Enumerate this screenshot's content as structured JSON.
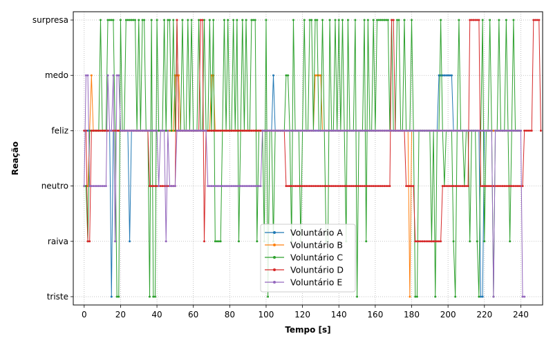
{
  "chart_data": {
    "type": "line",
    "title": "",
    "xlabel": "Tempo [s]",
    "ylabel": "Reação",
    "xlim": [
      -6,
      252
    ],
    "ylim": [
      -0.15,
      5.15
    ],
    "xticks": [
      0,
      20,
      40,
      60,
      80,
      100,
      120,
      140,
      160,
      180,
      200,
      220,
      240
    ],
    "yticks": [
      "triste",
      "raiva",
      "neutro",
      "feliz",
      "medo",
      "surpresa"
    ],
    "grid": true,
    "legend_position": "bottom-center",
    "sample_interval_s": 1,
    "series": [
      {
        "name": "Voluntário A",
        "color": "#1f77b4",
        "values": [
          3,
          3,
          3,
          3,
          3,
          3,
          3,
          3,
          3,
          3,
          3,
          3,
          3,
          3,
          3,
          0,
          3,
          3,
          3,
          3,
          3,
          3,
          3,
          3,
          3,
          1,
          3,
          3,
          3,
          3,
          3,
          3,
          3,
          3,
          3,
          3,
          3,
          3,
          3,
          3,
          3,
          3,
          3,
          3,
          3,
          3,
          3,
          3,
          3,
          3,
          3,
          3,
          3,
          3,
          3,
          3,
          3,
          3,
          3,
          3,
          3,
          3,
          3,
          3,
          3,
          3,
          3,
          3,
          3,
          3,
          3,
          3,
          3,
          3,
          3,
          3,
          3,
          3,
          3,
          3,
          3,
          3,
          3,
          3,
          3,
          3,
          3,
          3,
          3,
          3,
          3,
          3,
          3,
          3,
          3,
          3,
          3,
          3,
          3,
          3,
          3,
          3,
          3,
          3,
          4,
          3,
          3,
          3,
          3,
          3,
          3,
          3,
          3,
          3,
          3,
          3,
          3,
          3,
          3,
          3,
          3,
          3,
          3,
          3,
          3,
          3,
          3,
          3,
          3,
          3,
          3,
          3,
          3,
          3,
          3,
          3,
          3,
          3,
          3,
          3,
          3,
          3,
          3,
          3,
          3,
          3,
          3,
          3,
          3,
          3,
          3,
          3,
          3,
          3,
          3,
          3,
          3,
          3,
          3,
          3,
          3,
          3,
          3,
          3,
          3,
          3,
          3,
          3,
          3,
          3,
          3,
          3,
          3,
          3,
          3,
          3,
          3,
          3,
          3,
          3,
          3,
          3,
          3,
          3,
          3,
          3,
          3,
          3,
          3,
          3,
          3,
          3,
          3,
          3,
          3,
          4,
          4,
          4,
          4,
          4,
          4,
          4,
          4,
          3,
          3,
          3,
          3,
          3,
          3,
          3,
          3,
          3,
          3,
          3,
          3,
          3,
          3,
          3,
          0,
          0,
          3,
          3,
          3,
          3,
          3,
          3,
          3,
          3,
          3,
          3,
          3,
          3,
          3,
          3,
          3,
          3,
          3,
          3,
          3,
          3,
          3
        ]
      },
      {
        "name": "Voluntário B",
        "color": "#ff7f0e",
        "values": [
          2,
          2,
          2,
          3,
          4,
          3,
          3,
          3,
          3,
          3,
          3,
          3,
          3,
          3,
          3,
          3,
          3,
          3,
          3,
          3,
          3,
          3,
          3,
          3,
          3,
          3,
          3,
          3,
          3,
          3,
          3,
          3,
          3,
          3,
          3,
          3,
          3,
          3,
          3,
          3,
          3,
          3,
          3,
          3,
          3,
          3,
          3,
          3,
          3,
          3,
          4,
          4,
          4,
          3,
          3,
          3,
          3,
          3,
          3,
          3,
          3,
          3,
          3,
          3,
          3,
          3,
          3,
          3,
          3,
          3,
          4,
          4,
          3,
          3,
          3,
          3,
          3,
          3,
          3,
          3,
          3,
          3,
          3,
          3,
          3,
          3,
          3,
          3,
          3,
          3,
          3,
          3,
          3,
          3,
          3,
          3,
          3,
          3,
          3,
          3,
          3,
          3,
          3,
          3,
          3,
          3,
          3,
          3,
          3,
          3,
          3,
          3,
          3,
          3,
          3,
          3,
          3,
          3,
          3,
          3,
          3,
          3,
          3,
          3,
          3,
          3,
          3,
          4,
          4,
          4,
          4,
          3,
          3,
          3,
          3,
          3,
          3,
          3,
          3,
          3,
          3,
          3,
          3,
          3,
          3,
          3,
          3,
          3,
          3,
          3,
          3,
          3,
          3,
          3,
          3,
          3,
          3,
          3,
          3,
          3,
          3,
          3,
          3,
          3,
          3,
          3,
          3,
          3,
          3,
          3,
          3,
          3,
          3,
          3,
          3,
          3,
          3,
          3,
          3,
          0,
          3,
          3,
          3,
          3,
          3,
          3,
          3,
          3,
          3,
          3,
          3,
          3,
          3,
          3,
          3,
          3,
          3,
          3,
          3,
          3,
          3,
          3,
          3,
          3,
          3,
          3,
          3,
          3,
          3,
          3,
          3,
          3,
          3,
          3,
          3,
          3,
          3,
          3,
          3,
          3,
          3,
          3,
          3,
          3,
          3,
          3,
          3,
          3,
          3,
          3,
          3,
          3,
          3,
          3,
          3,
          3,
          3,
          3,
          3,
          3,
          3
        ]
      },
      {
        "name": "Voluntário C",
        "color": "#2ca02c",
        "values": [
          2,
          2,
          1,
          3,
          3,
          3,
          3,
          3,
          3,
          5,
          3,
          3,
          3,
          5,
          5,
          5,
          5,
          3,
          0,
          0,
          5,
          3,
          3,
          5,
          5,
          5,
          5,
          5,
          5,
          3,
          5,
          3,
          5,
          5,
          3,
          3,
          0,
          5,
          0,
          0,
          5,
          3,
          3,
          3,
          5,
          3,
          5,
          5,
          3,
          5,
          3,
          5,
          3,
          3,
          5,
          3,
          3,
          5,
          3,
          5,
          3,
          3,
          3,
          5,
          3,
          3,
          5,
          3,
          3,
          5,
          3,
          5,
          1,
          1,
          1,
          1,
          3,
          5,
          3,
          5,
          3,
          3,
          5,
          3,
          5,
          1,
          3,
          5,
          3,
          5,
          3,
          3,
          5,
          5,
          5,
          1,
          3,
          3,
          3,
          1,
          5,
          0,
          3,
          3,
          1,
          3,
          3,
          3,
          3,
          3,
          3,
          4,
          4,
          3,
          1,
          5,
          3,
          3,
          3,
          1,
          3,
          5,
          3,
          3,
          5,
          5,
          3,
          5,
          5,
          3,
          3,
          5,
          3,
          1,
          1,
          5,
          3,
          3,
          5,
          3,
          5,
          3,
          5,
          3,
          1,
          5,
          3,
          3,
          3,
          5,
          0,
          3,
          3,
          3,
          5,
          1,
          5,
          3,
          3,
          5,
          3,
          5,
          5,
          5,
          5,
          5,
          5,
          5,
          3,
          5,
          3,
          3,
          5,
          5,
          3,
          3,
          5,
          3,
          3,
          3,
          5,
          3,
          0,
          0,
          3,
          3,
          3,
          3,
          3,
          3,
          3,
          1,
          3,
          0,
          3,
          3,
          5,
          3,
          2,
          3,
          3,
          3,
          3,
          1,
          0,
          3,
          5,
          3,
          3,
          2,
          3,
          3,
          1,
          3,
          3,
          3,
          1,
          0,
          3,
          5,
          1,
          3,
          3,
          5,
          3,
          0,
          3,
          3,
          5,
          3,
          3,
          3,
          5,
          3,
          1,
          3,
          5,
          3,
          3,
          3,
          3
        ]
      },
      {
        "name": "Voluntário D",
        "color": "#d62728",
        "values": [
          3,
          3,
          1,
          1,
          3,
          3,
          3,
          3,
          3,
          3,
          3,
          3,
          3,
          3,
          3,
          3,
          3,
          3,
          3,
          3,
          3,
          3,
          3,
          3,
          3,
          3,
          3,
          3,
          3,
          3,
          3,
          3,
          3,
          3,
          3,
          3,
          2,
          2,
          2,
          2,
          2,
          2,
          2,
          2,
          2,
          2,
          2,
          2,
          2,
          2,
          2,
          5,
          3,
          3,
          3,
          3,
          3,
          3,
          3,
          3,
          3,
          3,
          3,
          3,
          5,
          5,
          1,
          3,
          3,
          3,
          3,
          3,
          3,
          3,
          3,
          3,
          3,
          3,
          3,
          3,
          3,
          3,
          3,
          3,
          3,
          3,
          3,
          3,
          3,
          3,
          3,
          3,
          3,
          3,
          3,
          3,
          3,
          3,
          3,
          3,
          3,
          3,
          3,
          3,
          3,
          3,
          3,
          3,
          3,
          3,
          3,
          2,
          2,
          2,
          2,
          2,
          2,
          2,
          2,
          2,
          2,
          2,
          2,
          2,
          2,
          2,
          2,
          2,
          2,
          2,
          2,
          2,
          2,
          2,
          2,
          2,
          2,
          2,
          2,
          2,
          2,
          2,
          2,
          2,
          2,
          2,
          2,
          2,
          2,
          2,
          2,
          2,
          2,
          2,
          2,
          2,
          2,
          2,
          2,
          2,
          2,
          2,
          2,
          2,
          2,
          2,
          2,
          2,
          2,
          5,
          5,
          3,
          3,
          3,
          3,
          3,
          3,
          2,
          2,
          2,
          2,
          2,
          1,
          1,
          1,
          1,
          1,
          1,
          1,
          1,
          1,
          1,
          1,
          1,
          1,
          1,
          1,
          2,
          2,
          2,
          2,
          2,
          2,
          2,
          2,
          2,
          2,
          2,
          2,
          2,
          2,
          2,
          5,
          5,
          5,
          5,
          5,
          5,
          2,
          2,
          2,
          2,
          2,
          2,
          2,
          2,
          2,
          2,
          2,
          2,
          2,
          2,
          2,
          2,
          2,
          2,
          2,
          2,
          2,
          2,
          2,
          2,
          3,
          3,
          3,
          3,
          3,
          5,
          5,
          5,
          5,
          3
        ]
      },
      {
        "name": "Voluntário E",
        "color": "#9467bd",
        "values": [
          2,
          4,
          4,
          2,
          2,
          2,
          2,
          2,
          2,
          2,
          2,
          2,
          2,
          4,
          3,
          3,
          4,
          1,
          4,
          4,
          3,
          3,
          3,
          3,
          3,
          3,
          3,
          3,
          3,
          3,
          3,
          3,
          3,
          3,
          3,
          3,
          3,
          3,
          3,
          3,
          3,
          2,
          3,
          3,
          3,
          1,
          3,
          2,
          2,
          2,
          2,
          3,
          3,
          3,
          3,
          3,
          3,
          3,
          3,
          3,
          3,
          3,
          3,
          3,
          3,
          3,
          3,
          3,
          2,
          2,
          2,
          2,
          2,
          2,
          2,
          2,
          2,
          2,
          2,
          2,
          2,
          2,
          2,
          2,
          2,
          2,
          2,
          2,
          2,
          2,
          2,
          2,
          2,
          2,
          2,
          2,
          2,
          2,
          3,
          3,
          3,
          3,
          3,
          3,
          3,
          3,
          3,
          3,
          3,
          3,
          3,
          3,
          3,
          3,
          3,
          3,
          3,
          3,
          3,
          3,
          3,
          3,
          3,
          3,
          3,
          3,
          3,
          3,
          3,
          3,
          3,
          3,
          3,
          3,
          3,
          3,
          3,
          3,
          3,
          3,
          3,
          3,
          3,
          3,
          3,
          3,
          3,
          3,
          3,
          3,
          3,
          3,
          3,
          3,
          3,
          3,
          3,
          3,
          3,
          3,
          3,
          3,
          3,
          3,
          3,
          3,
          3,
          3,
          3,
          3,
          3,
          3,
          3,
          3,
          3,
          3,
          3,
          3,
          3,
          3,
          3,
          3,
          3,
          3,
          3,
          3,
          3,
          3,
          3,
          3,
          3,
          3,
          3,
          3,
          3,
          3,
          3,
          3,
          3,
          3,
          3,
          3,
          3,
          3,
          3,
          3,
          3,
          3,
          3,
          3,
          3,
          3,
          3,
          3,
          3,
          3,
          3,
          3,
          3,
          3,
          3,
          3,
          3,
          3,
          3,
          0,
          3,
          3,
          3,
          3,
          3,
          3,
          3,
          3,
          3,
          3,
          3,
          3,
          3,
          3,
          3,
          0,
          0
        ]
      }
    ]
  }
}
